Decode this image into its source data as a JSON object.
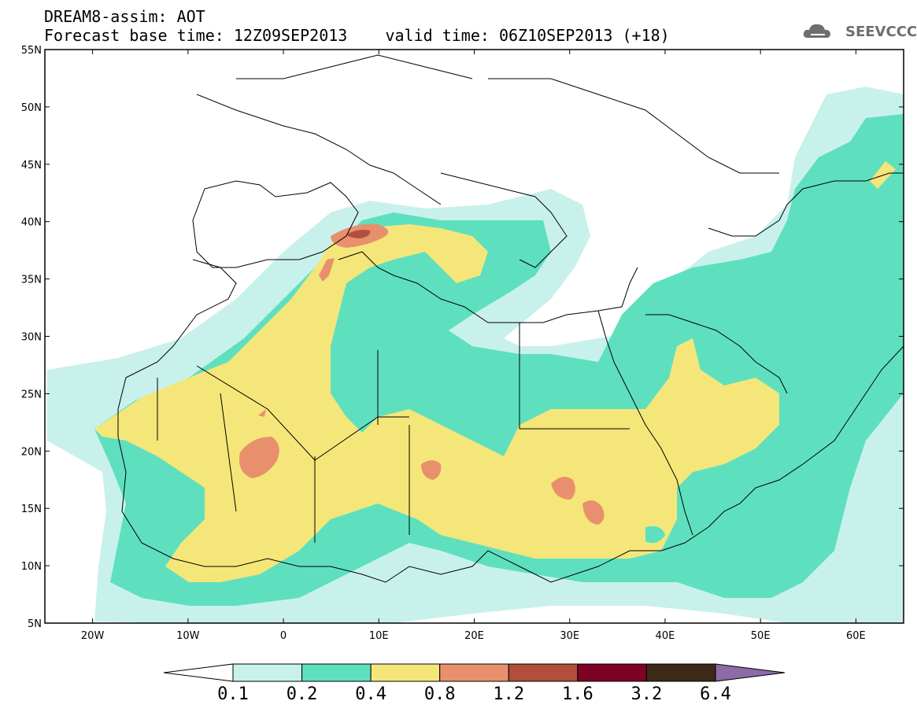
{
  "header": {
    "title_line1": "DREAM8-assim: AOT",
    "title_line2": "Forecast base time: 12Z09SEP2013    valid time: 06Z10SEP2013 (+18)",
    "logo_text": "SEEVCCC"
  },
  "map": {
    "lat_labels": [
      "55N",
      "50N",
      "45N",
      "40N",
      "35N",
      "30N",
      "25N",
      "20N",
      "15N",
      "10N",
      "5N"
    ],
    "lon_labels": [
      "20W",
      "10W",
      "0",
      "10E",
      "20E",
      "30E",
      "40E",
      "50E",
      "60E"
    ],
    "extent": {
      "lon_min": -25,
      "lon_max": 65,
      "lat_min": 5,
      "lat_max": 55
    }
  },
  "colorbar": {
    "labels": [
      "0.1",
      "0.2",
      "0.4",
      "0.8",
      "1.2",
      "1.6",
      "3.2",
      "6.4"
    ],
    "colors": [
      "#ffffff",
      "#c9f1ec",
      "#5ee0bf",
      "#f5e67a",
      "#e8906d",
      "#b04f3c",
      "#7c0324",
      "#3d2917",
      "#8d6aa8"
    ]
  }
}
